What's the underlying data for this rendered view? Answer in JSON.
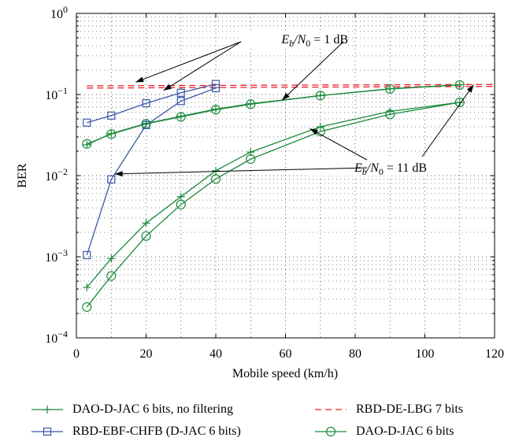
{
  "chart_data": {
    "type": "line",
    "xlabel": "Mobile speed (km/h)",
    "ylabel": "BER",
    "xlim": [
      0,
      120
    ],
    "ylim": [
      0.0001,
      1
    ],
    "yscale": "log",
    "grid": true,
    "x_ticks": [
      "0",
      "20",
      "40",
      "60",
      "80",
      "100",
      "120"
    ],
    "y_ticks": [
      {
        "base": "10",
        "exp": "0"
      },
      {
        "base": "10",
        "exp": "−1"
      },
      {
        "base": "10",
        "exp": "−2"
      },
      {
        "base": "10",
        "exp": "−3"
      },
      {
        "base": "10",
        "exp": "−4"
      }
    ],
    "legend_position": "below",
    "series": [
      {
        "name": "DAO-D-JAC 6 bits, no filtering",
        "color": "#1a8a3c",
        "style": "solid",
        "marker": "plus",
        "curves": [
          {
            "x": [
              3,
              10,
              20,
              30,
              40,
              50,
              70,
              90,
              110
            ],
            "y": [
              0.024,
              0.033,
              0.044,
              0.054,
              0.066,
              0.077,
              0.097,
              0.118,
              0.132
            ]
          },
          {
            "x": [
              3,
              10,
              20,
              30,
              40,
              50,
              70,
              90,
              110
            ],
            "y": [
              0.00042,
              0.00095,
              0.0026,
              0.0055,
              0.0115,
              0.0195,
              0.04,
              0.062,
              0.08
            ]
          }
        ]
      },
      {
        "name": "RBD-DE-LBG 7 bits",
        "color": "#e8202a",
        "style": "dashed",
        "marker": "none",
        "curves": [
          {
            "x": [
              3,
              120
            ],
            "y": [
              0.128,
              0.133
            ]
          },
          {
            "x": [
              3,
              120
            ],
            "y": [
              0.12,
              0.126
            ]
          }
        ]
      },
      {
        "name": "RBD-EBF-CHFB (D-JAC 6 bits)",
        "color": "#3a55a8",
        "style": "solid",
        "marker": "square",
        "curves": [
          {
            "x": [
              3,
              10,
              20,
              30,
              40
            ],
            "y": [
              0.045,
              0.055,
              0.078,
              0.105,
              0.135
            ]
          },
          {
            "x": [
              3,
              10,
              20,
              30,
              40
            ],
            "y": [
              0.00105,
              0.009,
              0.042,
              0.083,
              0.12
            ]
          }
        ]
      },
      {
        "name": "DAO-D-JAC 6 bits",
        "color": "#1a8a3c",
        "style": "solid",
        "marker": "circle",
        "curves": [
          {
            "x": [
              3,
              10,
              20,
              30,
              40,
              50,
              70,
              90,
              110
            ],
            "y": [
              0.0246,
              0.0325,
              0.0435,
              0.053,
              0.065,
              0.076,
              0.097,
              0.117,
              0.131
            ]
          },
          {
            "x": [
              3,
              10,
              20,
              30,
              40,
              50,
              70,
              90,
              110
            ],
            "y": [
              0.00024,
              0.00058,
              0.0018,
              0.0044,
              0.0091,
              0.016,
              0.035,
              0.057,
              0.08
            ]
          }
        ]
      }
    ],
    "annotations": [
      {
        "id": "ann-1db",
        "text_parts": [
          "E",
          "b",
          "/N",
          "0",
          " = 1 dB"
        ],
        "targets": [
          [
            17,
            0.142
          ],
          [
            25,
            0.112
          ],
          [
            59,
            0.085
          ]
        ]
      },
      {
        "id": "ann-11db",
        "text_parts": [
          "E",
          "b",
          "/N",
          "0",
          " = 11 dB"
        ],
        "targets": [
          [
            11,
            0.0105
          ],
          [
            67,
            0.038
          ],
          [
            114,
            0.132
          ]
        ]
      }
    ]
  }
}
